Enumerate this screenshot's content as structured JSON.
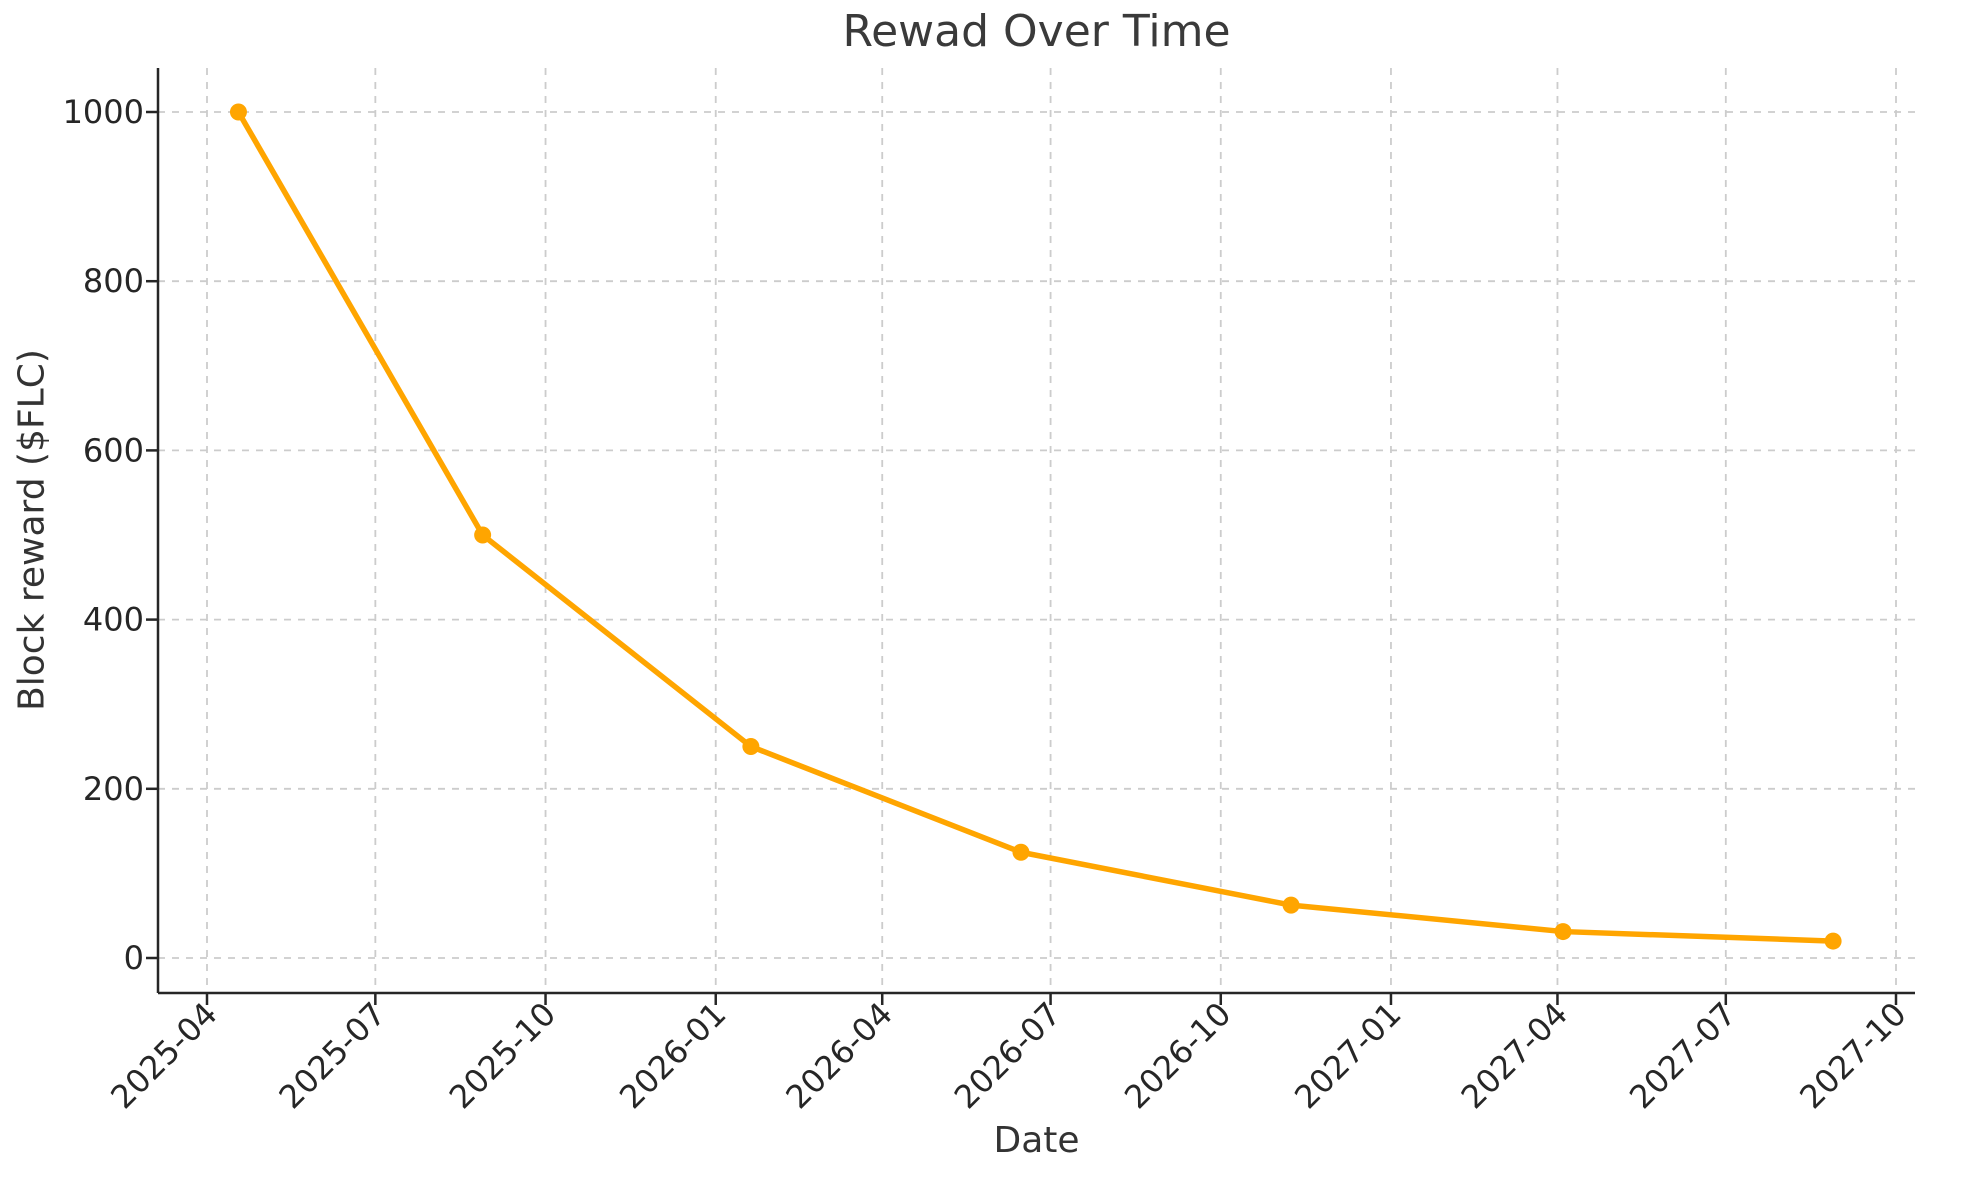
{
  "page": {
    "background": "#ffffff"
  },
  "chart_data": {
    "type": "line",
    "title": "Rewad Over Time",
    "xlabel": "Date",
    "ylabel": "Block reward ($FLC)",
    "series": [
      {
        "name": "Block reward",
        "color": "#FFA500",
        "marker": "circle",
        "x": [
          "2025-04-18",
          "2025-08-28",
          "2026-01-20",
          "2026-06-15",
          "2026-11-08",
          "2027-04-04",
          "2027-08-28"
        ],
        "values": [
          1000,
          500,
          250,
          125,
          62.5,
          31.25,
          20
        ]
      }
    ],
    "x_ticks": [
      "2025-04",
      "2025-07",
      "2025-10",
      "2026-01",
      "2026-04",
      "2026-07",
      "2026-10",
      "2027-01",
      "2027-04",
      "2027-07",
      "2027-10"
    ],
    "x_tick_rotation": 45,
    "y_ticks": [
      0,
      200,
      400,
      600,
      800,
      1000
    ],
    "ylim": [
      0,
      1000
    ],
    "grid": true,
    "grid_style": "dashed",
    "legend": "none",
    "colors": {
      "grid": "#cccccc",
      "axis": "#262626",
      "tick_label": "#262626",
      "title": "#3a3a3a"
    }
  }
}
